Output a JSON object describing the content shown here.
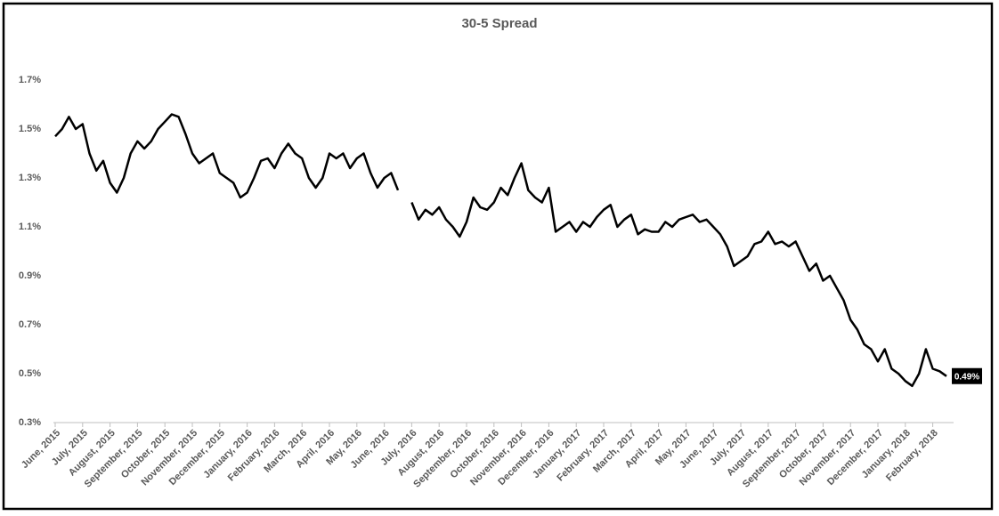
{
  "chart_data": {
    "type": "line",
    "title": "30-5 Spread",
    "categories": [
      "June, 2015",
      null,
      null,
      null,
      "July, 2015",
      null,
      null,
      null,
      "August, 2015",
      null,
      null,
      null,
      "September, 2015",
      null,
      null,
      null,
      "October, 2015",
      null,
      null,
      null,
      "November, 2015",
      null,
      null,
      null,
      "December, 2015",
      null,
      null,
      null,
      "January, 2016",
      null,
      null,
      null,
      "February, 2016",
      null,
      null,
      null,
      "March, 2016",
      null,
      null,
      null,
      "April, 2016",
      null,
      null,
      null,
      "May, 2016",
      null,
      null,
      null,
      "June, 2016",
      null,
      null,
      null,
      "July, 2016",
      null,
      null,
      null,
      "August, 2016",
      null,
      null,
      null,
      "September, 2016",
      null,
      null,
      null,
      "October, 2016",
      null,
      null,
      null,
      "November, 2016",
      null,
      null,
      null,
      "December, 2016",
      null,
      null,
      null,
      "January, 2017",
      null,
      null,
      null,
      "February, 2017",
      null,
      null,
      null,
      "March, 2017",
      null,
      null,
      null,
      "April, 2017",
      null,
      null,
      null,
      "May, 2017",
      null,
      null,
      null,
      "June, 2017",
      null,
      null,
      null,
      "July, 2017",
      null,
      null,
      null,
      "August, 2017",
      null,
      null,
      null,
      "September, 2017",
      null,
      null,
      null,
      "October, 2017",
      null,
      null,
      null,
      "November, 2017",
      null,
      null,
      null,
      "December, 2017",
      null,
      null,
      null,
      "January, 2018",
      null,
      null,
      null,
      "February, 2018",
      null,
      null
    ],
    "series": [
      {
        "name": "30-5 Spread",
        "color": "#000000",
        "values": [
          1.47,
          1.5,
          1.55,
          1.5,
          1.52,
          1.4,
          1.33,
          1.37,
          1.28,
          1.24,
          1.3,
          1.4,
          1.45,
          1.42,
          1.45,
          1.5,
          1.53,
          1.56,
          1.55,
          1.48,
          1.4,
          1.36,
          1.38,
          1.4,
          1.32,
          1.3,
          1.28,
          1.22,
          1.24,
          1.3,
          1.37,
          1.38,
          1.34,
          1.4,
          1.44,
          1.4,
          1.38,
          1.3,
          1.26,
          1.3,
          1.4,
          1.38,
          1.4,
          1.34,
          1.38,
          1.4,
          1.32,
          1.26,
          1.3,
          1.32,
          1.25,
          null,
          1.2,
          1.13,
          1.17,
          1.15,
          1.18,
          1.13,
          1.1,
          1.06,
          1.12,
          1.22,
          1.18,
          1.17,
          1.2,
          1.26,
          1.23,
          1.3,
          1.36,
          1.25,
          1.22,
          1.2,
          1.26,
          1.08,
          1.1,
          1.12,
          1.08,
          1.12,
          1.1,
          1.14,
          1.17,
          1.19,
          1.1,
          1.13,
          1.15,
          1.07,
          1.09,
          1.08,
          1.08,
          1.12,
          1.1,
          1.13,
          1.14,
          1.15,
          1.12,
          1.13,
          1.1,
          1.07,
          1.02,
          0.94,
          0.96,
          0.98,
          1.03,
          1.04,
          1.08,
          1.03,
          1.04,
          1.02,
          1.04,
          0.98,
          0.92,
          0.95,
          0.88,
          0.9,
          0.85,
          0.8,
          0.72,
          0.68,
          0.62,
          0.6,
          0.55,
          0.6,
          0.52,
          0.5,
          0.47,
          0.45,
          0.5,
          0.6,
          0.52,
          0.51,
          0.49
        ],
        "value_labels": [
          null,
          null,
          null,
          null,
          null,
          null,
          null,
          null,
          null,
          null,
          null,
          null,
          null,
          null,
          null,
          null,
          null,
          null,
          null,
          null,
          null,
          null,
          null,
          null,
          null,
          null,
          null,
          null,
          null,
          null,
          null,
          null,
          null,
          null,
          null,
          null,
          null,
          null,
          null,
          null,
          null,
          null,
          null,
          null,
          null,
          null,
          null,
          null,
          null,
          null,
          null,
          null,
          null,
          null,
          null,
          null,
          null,
          null,
          null,
          null,
          null,
          null,
          null,
          null,
          null,
          null,
          null,
          null,
          null,
          null,
          null,
          null,
          null,
          null,
          null,
          null,
          null,
          null,
          null,
          null,
          null,
          null,
          null,
          null,
          null,
          null,
          null,
          null,
          null,
          null,
          null,
          null,
          null,
          null,
          null,
          null,
          null,
          null,
          null,
          null,
          null,
          null,
          null,
          null,
          null,
          null,
          null,
          null,
          null,
          null,
          null,
          null,
          null,
          null,
          null,
          null,
          null,
          null,
          null,
          null,
          null,
          null,
          null,
          null,
          null,
          null,
          null,
          null,
          null,
          null,
          "0.49%"
        ]
      }
    ],
    "ylim": [
      0.3,
      1.8
    ],
    "yticks": [
      {
        "value": 0.3,
        "label": "0.3%"
      },
      {
        "value": 0.5,
        "label": "0.5%"
      },
      {
        "value": 0.7,
        "label": "0.7%"
      },
      {
        "value": 0.9,
        "label": "0.9%"
      },
      {
        "value": 1.1,
        "label": "1.1%"
      },
      {
        "value": 1.3,
        "label": "1.3%"
      },
      {
        "value": 1.5,
        "label": "1.5%"
      },
      {
        "value": 1.7,
        "label": "1.7%"
      }
    ],
    "grid": false
  }
}
